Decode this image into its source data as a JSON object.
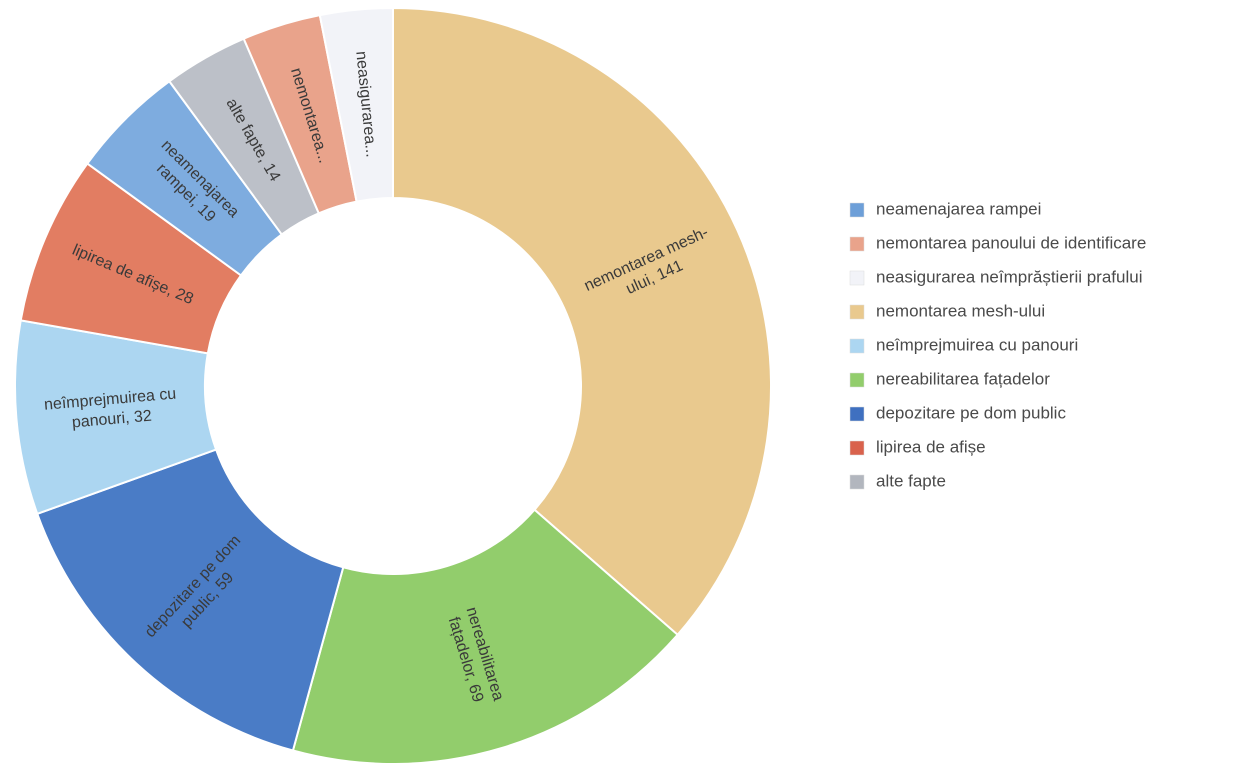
{
  "chart_data": {
    "type": "donut",
    "categories": [
      "nemontarea mesh-ului",
      "nereabilitarea fațadelor",
      "depozitare pe dom public",
      "neîmprejmuirea cu panouri",
      "lipirea de afișe",
      "neamenajarea rampei",
      "alte fapte",
      "nemontarea panoului de identificare",
      "neasigurarea neîmprăștierii prafului"
    ],
    "values": [
      141,
      69,
      59,
      32,
      28,
      19,
      14,
      13,
      12
    ],
    "value_labels": [
      [
        "nemontarea mesh-",
        "ului, 141"
      ],
      [
        "nereabilitarea",
        "fațadelor, 69"
      ],
      [
        "depozitare pe dom",
        "public, 59"
      ],
      [
        "neîmprejmuirea cu",
        "panouri, 32"
      ],
      [
        "lipirea de afișe, 28"
      ],
      [
        "neamenajarea",
        "rampei, 19"
      ],
      [
        "alte fapte, 14"
      ],
      [
        "nemontarea..."
      ],
      [
        "neasigurarea..."
      ]
    ],
    "colors": [
      "#e9c98e",
      "#92cd6c",
      "#4a7cc6",
      "#acd6f1",
      "#e27d62",
      "#7eacdf",
      "#bcc0c8",
      "#e9a38b",
      "#f2f3f8"
    ],
    "legend": [
      {
        "name": "neamenajarea rampei",
        "color": "#6d9fd8"
      },
      {
        "name": "nemontarea panoului de identificare",
        "color": "#e9a38b"
      },
      {
        "name": "neasigurarea neîmprăștierii prafului",
        "color": "#f2f3f8"
      },
      {
        "name": "nemontarea mesh-ului",
        "color": "#e9c98e"
      },
      {
        "name": "neîmprejmuirea cu panouri",
        "color": "#acd6f1"
      },
      {
        "name": "nereabilitarea fațadelor",
        "color": "#92cd6c"
      },
      {
        "name": "depozitare pe dom public",
        "color": "#3f70c0"
      },
      {
        "name": "lipirea de afișe",
        "color": "#d9624c"
      },
      {
        "name": "alte fapte",
        "color": "#b2b6be"
      }
    ]
  }
}
